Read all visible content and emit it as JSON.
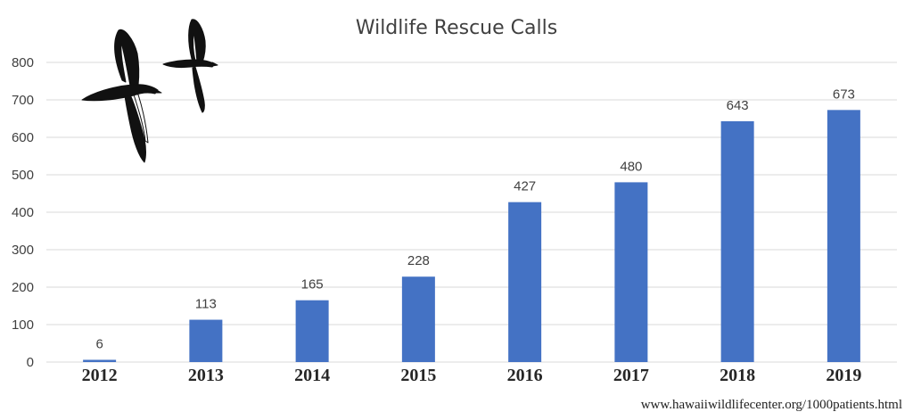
{
  "chart_data": {
    "type": "bar",
    "title": "Wildlife Rescue Calls",
    "categories": [
      "2012",
      "2013",
      "2014",
      "2015",
      "2016",
      "2017",
      "2018",
      "2019"
    ],
    "values": [
      6,
      113,
      165,
      228,
      427,
      480,
      643,
      673
    ],
    "data_labels": [
      "6",
      "113",
      "165",
      "228",
      "427",
      "480",
      "643",
      "673"
    ],
    "yticks": [
      0,
      100,
      200,
      300,
      400,
      500,
      600,
      700,
      800
    ],
    "ylim": [
      0,
      800
    ],
    "xlabel": "",
    "ylabel": "",
    "grid": true,
    "bar_color": "#4472c4",
    "source": "www.hawaiiwildlifecenter.org/1000patients.html"
  },
  "illustration": {
    "icon": "seabirds-illustration"
  }
}
